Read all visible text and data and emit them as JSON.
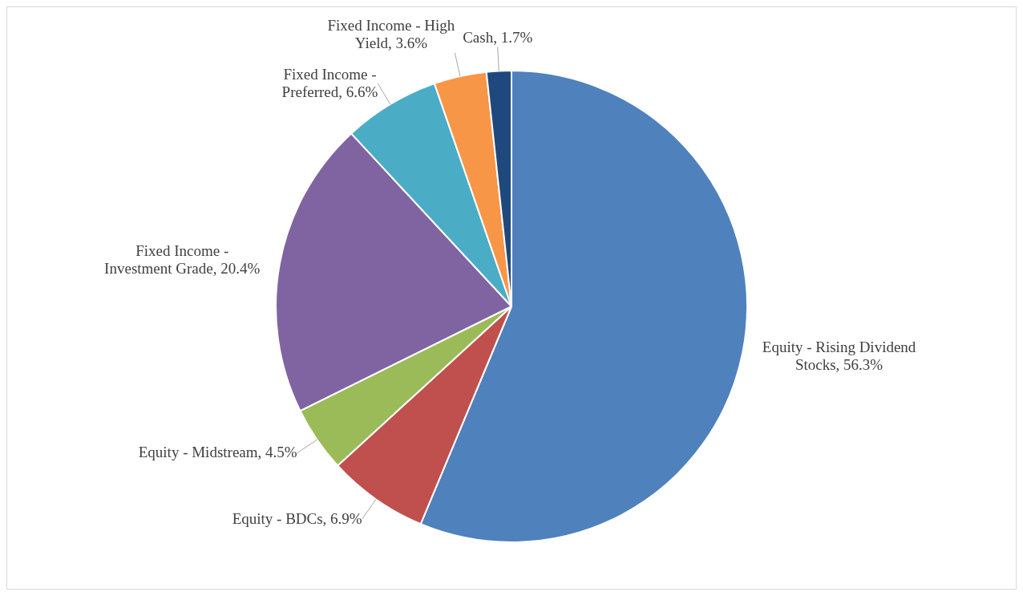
{
  "chart_data": {
    "type": "pie",
    "categories": [
      "Equity - Rising Dividend Stocks",
      "Equity - BDCs",
      "Equity - Midstream",
      "Fixed Income - Investment Grade",
      "Fixed Income - Preferred",
      "Fixed Income - High Yield",
      "Cash"
    ],
    "values": [
      56.3,
      6.9,
      4.5,
      20.4,
      6.6,
      3.6,
      1.7
    ],
    "value_labels": [
      "56.3%",
      "6.9%",
      "4.5%",
      "20.4%",
      "6.6%",
      "3.6%",
      "1.7%"
    ],
    "colors": [
      "#4f81bd",
      "#c0504d",
      "#9bbb59",
      "#8064a2",
      "#4bacc6",
      "#f79646",
      "#1f497d"
    ],
    "legend": false
  }
}
